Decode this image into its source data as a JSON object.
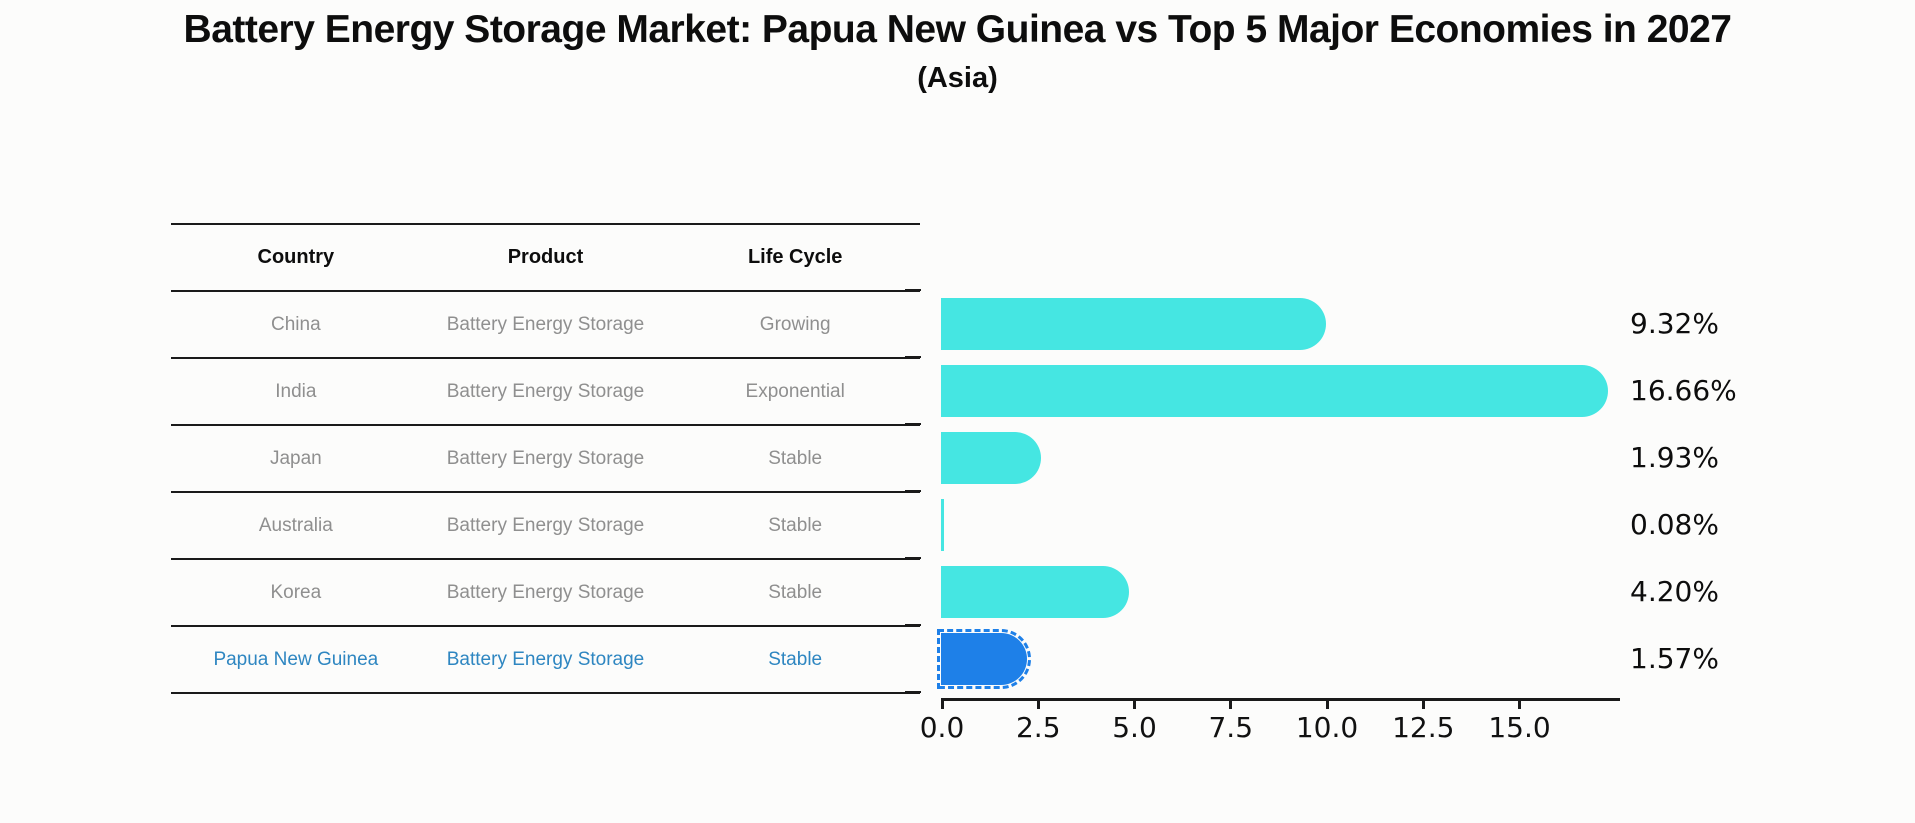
{
  "title": {
    "text": "Battery Energy Storage Market: Papua New Guinea vs Top 5 Major Economies in 2027",
    "subtitle": "(Asia)"
  },
  "table": {
    "headers": [
      "Country",
      "Product",
      "Life Cycle"
    ],
    "rows": [
      {
        "country": "China",
        "product": "Battery Energy Storage",
        "life_cycle": "Growing",
        "value": 9.32,
        "label": "9.32%",
        "highlight": false
      },
      {
        "country": "India",
        "product": "Battery Energy Storage",
        "life_cycle": "Exponential",
        "value": 16.66,
        "label": "16.66%",
        "highlight": false
      },
      {
        "country": "Japan",
        "product": "Battery Energy Storage",
        "life_cycle": "Stable",
        "value": 1.93,
        "label": "1.93%",
        "highlight": false
      },
      {
        "country": "Australia",
        "product": "Battery Energy Storage",
        "life_cycle": "Stable",
        "value": 0.08,
        "label": "0.08%",
        "highlight": false
      },
      {
        "country": "Korea",
        "product": "Battery Energy Storage",
        "life_cycle": "Stable",
        "value": 4.2,
        "label": "4.20%",
        "highlight": false
      },
      {
        "country": "Papua New Guinea",
        "product": "Battery Energy Storage",
        "life_cycle": "Stable",
        "value": 1.57,
        "label": "1.57%",
        "highlight": true
      }
    ]
  },
  "chart_data": {
    "type": "bar",
    "orientation": "horizontal",
    "title": "Battery Energy Storage Market: Papua New Guinea vs Top 5 Major Economies in 2027",
    "subtitle": "(Asia)",
    "categories": [
      "China",
      "India",
      "Japan",
      "Australia",
      "Korea",
      "Papua New Guinea"
    ],
    "values": [
      9.32,
      16.66,
      1.93,
      0.08,
      4.2,
      1.57
    ],
    "value_labels": [
      "9.32%",
      "16.66%",
      "1.93%",
      "0.08%",
      "4.20%",
      "1.57%"
    ],
    "xlabel": "",
    "ylabel": "",
    "xlim": [
      0,
      17.6
    ],
    "x_ticks": [
      0.0,
      2.5,
      5.0,
      7.5,
      10.0,
      12.5,
      15.0
    ],
    "x_tick_labels": [
      "0.0",
      "2.5",
      "5.0",
      "7.5",
      "10.0",
      "12.5",
      "15.0"
    ],
    "grid": false,
    "legend": "none",
    "highlight_index": 5
  },
  "colors": {
    "bar": "#45E6E2",
    "highlight_bar": "#1E80E8",
    "highlight_text": "#2E86C1",
    "row_text": "#8f8f8f",
    "header_text": "#0d0d0d",
    "axis": "#1a1a1a",
    "background": "#FCFCFB"
  }
}
